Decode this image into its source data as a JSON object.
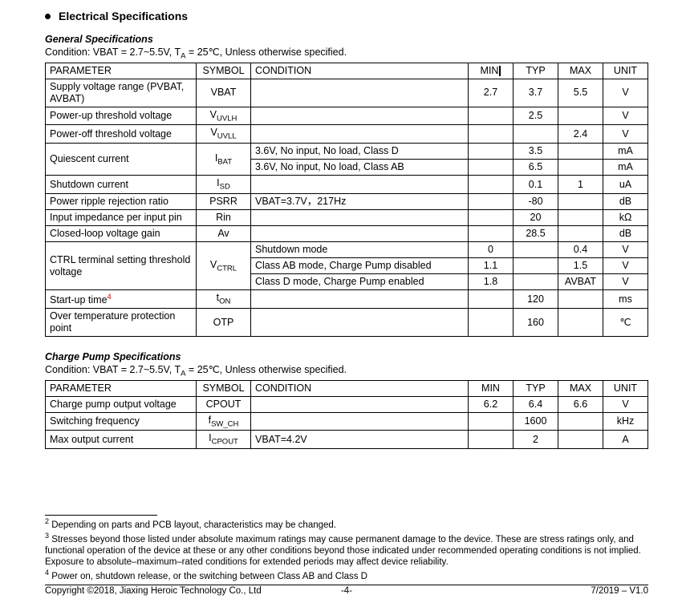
{
  "page": {
    "heading": "Electrical Specifications",
    "bullet_color": "#000000"
  },
  "general": {
    "subheading": "General Specifications",
    "condition_prefix": "Condition: VBAT = 2.7~5.5V, T",
    "condition_sub": "A",
    "condition_suffix": " = 25℃, Unless otherwise specified.",
    "headers": {
      "param": "PARAMETER",
      "symbol": "SYMBOL",
      "condition": "CONDITION",
      "min": "MIN",
      "typ": "TYP",
      "max": "MAX",
      "unit": "UNIT"
    },
    "rows": {
      "r0": {
        "param": "Supply voltage range (PVBAT, AVBAT)",
        "sym": "VBAT",
        "cond": "",
        "min": "2.7",
        "typ": "3.7",
        "max": "5.5",
        "unit": "V"
      },
      "r1": {
        "param": "Power-up threshold voltage",
        "sym_pre": "V",
        "sym_sub": "UVLH",
        "cond": "",
        "min": "",
        "typ": "2.5",
        "max": "",
        "unit": "V"
      },
      "r2": {
        "param": "Power-off threshold voltage",
        "sym_pre": "V",
        "sym_sub": "UVLL",
        "cond": "",
        "min": "",
        "typ": "",
        "max": "2.4",
        "unit": "V"
      },
      "r3a": {
        "param": "Quiescent current",
        "sym_pre": "I",
        "sym_sub": "BAT",
        "cond": "3.6V, No input, No load, Class D",
        "min": "",
        "typ": "3.5",
        "max": "",
        "unit": "mA"
      },
      "r3b": {
        "cond": "3.6V, No input, No load, Class AB",
        "min": "",
        "typ": "6.5",
        "max": "",
        "unit": "mA"
      },
      "r4": {
        "param": "Shutdown current",
        "sym_pre": "I",
        "sym_sub": "SD",
        "cond": "",
        "min": "",
        "typ": "0.1",
        "max": "1",
        "unit": "uA"
      },
      "r5": {
        "param": "Power ripple rejection ratio",
        "sym": "PSRR",
        "cond": "VBAT=3.7V，217Hz",
        "min": "",
        "typ": "-80",
        "max": "",
        "unit": "dB"
      },
      "r6": {
        "param": "Input impedance per input pin",
        "sym": "Rin",
        "cond": "",
        "min": "",
        "typ": "20",
        "max": "",
        "unit": "kΩ"
      },
      "r7": {
        "param": "Closed-loop voltage gain",
        "sym": "Av",
        "cond": "",
        "min": "",
        "typ": "28.5",
        "max": "",
        "unit": "dB"
      },
      "r8a": {
        "param": "CTRL terminal setting threshold voltage",
        "sym_pre": "V",
        "sym_sub": "CTRL",
        "cond": "Shutdown mode",
        "min": "0",
        "typ": "",
        "max": "0.4",
        "unit": "V"
      },
      "r8b": {
        "cond": "Class AB mode, Charge Pump disabled",
        "min": "1.1",
        "typ": "",
        "max": "1.5",
        "unit": "V"
      },
      "r8c": {
        "cond": "Class D mode, Charge Pump enabled",
        "min": "1.8",
        "typ": "",
        "max": "AVBAT",
        "unit": "V"
      },
      "r9": {
        "param_pre": "Start-up time",
        "param_sup": "4",
        "sym_pre": "t",
        "sym_sub": "ON",
        "cond": "",
        "min": "",
        "typ": "120",
        "max": "",
        "unit": "ms"
      },
      "r10": {
        "param": "Over temperature protection point",
        "sym": "OTP",
        "cond": "",
        "min": "",
        "typ": "160",
        "max": "",
        "unit": "℃"
      }
    }
  },
  "charge": {
    "subheading": "Charge Pump Specifications",
    "condition_prefix": "Condition: VBAT = 2.7~5.5V, T",
    "condition_sub": "A",
    "condition_suffix": " = 25℃, Unless otherwise specified.",
    "headers": {
      "param": "PARAMETER",
      "symbol": "SYMBOL",
      "condition": "CONDITION",
      "min": "MIN",
      "typ": "TYP",
      "max": "MAX",
      "unit": "UNIT"
    },
    "rows": {
      "c0": {
        "param": "Charge pump output voltage",
        "sym": "CPOUT",
        "cond": "",
        "min": "6.2",
        "typ": "6.4",
        "max": "6.6",
        "unit": "V"
      },
      "c1": {
        "param": "Switching frequency",
        "sym_pre": "f",
        "sym_sub": "SW_CH",
        "cond": "",
        "min": "",
        "typ": "1600",
        "max": "",
        "unit": "kHz"
      },
      "c2": {
        "param": "Max output current",
        "sym_pre": "I",
        "sym_sub": "CPOUT",
        "cond": "VBAT=4.2V",
        "min": "",
        "typ": "2",
        "max": "",
        "unit": "A"
      }
    }
  },
  "footnotes": {
    "f2_sup": "2",
    "f2_text": "  Depending on parts and PCB layout, characteristics may be changed.",
    "f3_sup": "3",
    "f3_text": "  Stresses beyond those listed under absolute maximum ratings may cause permanent damage to the device. These are stress ratings only, and functional operation of the device at these or any other conditions beyond those indicated under recommended operating conditions is not implied. Exposure to absolute–maximum–rated conditions for extended periods may affect device reliability.",
    "f4_sup": "4",
    "f4_text": "  Power on, shutdown release, or the switching between Class AB and Class D"
  },
  "footer": {
    "left": "Copyright ©2018, Jiaxing Heroic Technology Co., Ltd",
    "center": "-4-",
    "right": "7/2019 – V1.0"
  }
}
